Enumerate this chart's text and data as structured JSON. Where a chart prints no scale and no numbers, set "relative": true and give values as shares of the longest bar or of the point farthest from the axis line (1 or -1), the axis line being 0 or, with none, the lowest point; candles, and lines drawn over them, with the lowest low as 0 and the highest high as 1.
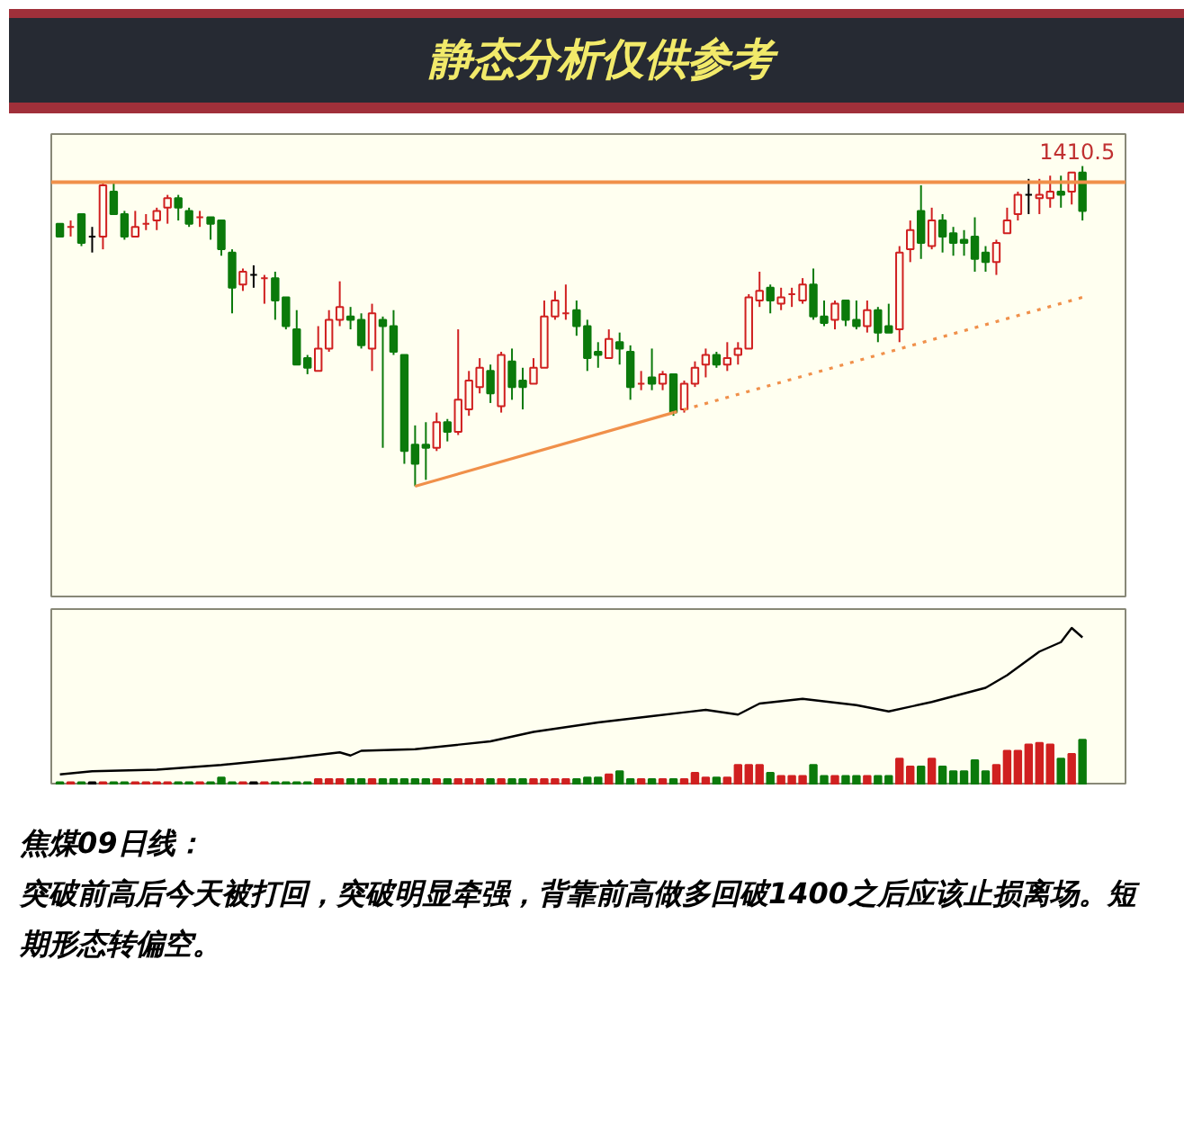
{
  "chart_data": [
    {
      "type": "candlestick",
      "title": "静态分析仅供参考",
      "relative": true,
      "categories": [
        null,
        null,
        null,
        null,
        null,
        null,
        null,
        null,
        null,
        null,
        null,
        null,
        null,
        null,
        null,
        null,
        null,
        null,
        null,
        null,
        null,
        null,
        null,
        null,
        null,
        null,
        null,
        null,
        null,
        null,
        null,
        null,
        null,
        null,
        null,
        null,
        null,
        null,
        null,
        null,
        null,
        null,
        null,
        null,
        null,
        null,
        null,
        null,
        null,
        null,
        null,
        null,
        null,
        null,
        null,
        null,
        null,
        null,
        null,
        null,
        null,
        null,
        null,
        null,
        null,
        null,
        null,
        null,
        null,
        null,
        null,
        null,
        null,
        null,
        null,
        null,
        null,
        null,
        null,
        null,
        null,
        null,
        null,
        null,
        null,
        null,
        null,
        null,
        null,
        null,
        null,
        null,
        null,
        null,
        null,
        null
      ],
      "ohlc": [
        [
          0.82,
          0.82,
          0.78,
          0.78
        ],
        [
          0.81,
          0.83,
          0.78,
          0.81
        ],
        [
          0.85,
          0.85,
          0.75,
          0.76
        ],
        [
          0.78,
          0.81,
          0.73,
          0.78
        ],
        [
          0.78,
          0.95,
          0.74,
          0.94
        ],
        [
          0.92,
          0.95,
          0.85,
          0.85
        ],
        [
          0.85,
          0.86,
          0.77,
          0.78
        ],
        [
          0.78,
          0.86,
          0.78,
          0.81
        ],
        [
          0.82,
          0.85,
          0.8,
          0.82
        ],
        [
          0.83,
          0.87,
          0.8,
          0.86
        ],
        [
          0.87,
          0.91,
          0.82,
          0.9
        ],
        [
          0.9,
          0.91,
          0.83,
          0.87
        ],
        [
          0.86,
          0.87,
          0.81,
          0.82
        ],
        [
          0.84,
          0.86,
          0.81,
          0.84
        ],
        [
          0.84,
          0.84,
          0.77,
          0.82
        ],
        [
          0.83,
          0.83,
          0.72,
          0.74
        ],
        [
          0.73,
          0.74,
          0.54,
          0.62
        ],
        [
          0.63,
          0.68,
          0.61,
          0.67
        ],
        [
          0.66,
          0.69,
          0.62,
          0.66
        ],
        [
          0.65,
          0.66,
          0.57,
          0.65
        ],
        [
          0.65,
          0.67,
          0.52,
          0.58
        ],
        [
          0.59,
          0.59,
          0.49,
          0.5
        ],
        [
          0.49,
          0.55,
          0.38,
          0.38
        ],
        [
          0.4,
          0.41,
          0.35,
          0.37
        ],
        [
          0.36,
          0.5,
          0.36,
          0.43
        ],
        [
          0.43,
          0.55,
          0.42,
          0.52
        ],
        [
          0.52,
          0.64,
          0.5,
          0.56
        ],
        [
          0.53,
          0.56,
          0.49,
          0.52
        ],
        [
          0.52,
          0.54,
          0.43,
          0.44
        ],
        [
          0.43,
          0.57,
          0.36,
          0.54
        ],
        [
          0.52,
          0.53,
          0.12,
          0.5
        ],
        [
          0.5,
          0.55,
          0.41,
          0.42
        ],
        [
          0.41,
          0.41,
          0.07,
          0.11
        ],
        [
          0.13,
          0.19,
          0,
          0.07
        ],
        [
          0.13,
          0.2,
          0.02,
          0.12
        ],
        [
          0.12,
          0.23,
          0.11,
          0.2
        ],
        [
          0.2,
          0.21,
          0.14,
          0.17
        ],
        [
          0.17,
          0.49,
          0.16,
          0.27
        ],
        [
          0.24,
          0.36,
          0.22,
          0.33
        ],
        [
          0.31,
          0.4,
          0.29,
          0.37
        ],
        [
          0.36,
          0.38,
          0.26,
          0.29
        ],
        [
          0.25,
          0.42,
          0.23,
          0.41
        ],
        [
          0.39,
          0.43,
          0.27,
          0.31
        ],
        [
          0.33,
          0.37,
          0.24,
          0.31
        ],
        [
          0.32,
          0.4,
          0.32,
          0.37
        ],
        [
          0.37,
          0.58,
          0.37,
          0.53
        ],
        [
          0.53,
          0.61,
          0.52,
          0.58
        ],
        [
          0.54,
          0.63,
          0.52,
          0.54
        ],
        [
          0.55,
          0.58,
          0.47,
          0.5
        ],
        [
          0.5,
          0.52,
          0.36,
          0.4
        ],
        [
          0.42,
          0.45,
          0.37,
          0.41
        ],
        [
          0.4,
          0.49,
          0.4,
          0.46
        ],
        [
          0.45,
          0.48,
          0.38,
          0.43
        ],
        [
          0.42,
          0.44,
          0.27,
          0.31
        ],
        [
          0.32,
          0.36,
          0.3,
          0.32
        ],
        [
          0.34,
          0.43,
          0.3,
          0.32
        ],
        [
          0.32,
          0.36,
          0.3,
          0.35
        ],
        [
          0.35,
          0.35,
          0.22,
          0.23
        ],
        [
          0.24,
          0.33,
          0.23,
          0.32
        ],
        [
          0.32,
          0.39,
          0.31,
          0.37
        ],
        [
          0.38,
          0.43,
          0.34,
          0.41
        ],
        [
          0.41,
          0.42,
          0.37,
          0.38
        ],
        [
          0.38,
          0.45,
          0.36,
          0.4
        ],
        [
          0.41,
          0.45,
          0.38,
          0.43
        ],
        [
          0.43,
          0.6,
          0.43,
          0.59
        ],
        [
          0.58,
          0.67,
          0.56,
          0.61
        ],
        [
          0.62,
          0.63,
          0.54,
          0.58
        ],
        [
          0.57,
          0.62,
          0.55,
          0.59
        ],
        [
          0.6,
          0.62,
          0.56,
          0.6
        ],
        [
          0.58,
          0.65,
          0.57,
          0.63
        ],
        [
          0.63,
          0.68,
          0.52,
          0.53
        ],
        [
          0.53,
          0.58,
          0.5,
          0.51
        ],
        [
          0.52,
          0.58,
          0.49,
          0.57
        ],
        [
          0.58,
          0.58,
          0.5,
          0.52
        ],
        [
          0.52,
          0.58,
          0.49,
          0.5
        ],
        [
          0.5,
          0.58,
          0.48,
          0.55
        ],
        [
          0.55,
          0.56,
          0.45,
          0.48
        ],
        [
          0.5,
          0.57,
          0.48,
          0.48
        ],
        [
          0.49,
          0.75,
          0.45,
          0.73
        ],
        [
          0.74,
          0.83,
          0.7,
          0.8
        ],
        [
          0.86,
          0.94,
          0.71,
          0.76
        ],
        [
          0.75,
          0.87,
          0.74,
          0.83
        ],
        [
          0.83,
          0.85,
          0.73,
          0.78
        ],
        [
          0.79,
          0.81,
          0.72,
          0.76
        ],
        [
          0.77,
          0.8,
          0.72,
          0.76
        ],
        [
          0.78,
          0.84,
          0.67,
          0.71
        ],
        [
          0.73,
          0.75,
          0.67,
          0.7
        ],
        [
          0.7,
          0.77,
          0.66,
          0.76
        ],
        [
          0.79,
          0.87,
          0.79,
          0.83
        ],
        [
          0.85,
          0.92,
          0.83,
          0.91
        ],
        [
          0.91,
          0.96,
          0.85,
          0.91
        ],
        [
          0.9,
          0.96,
          0.85,
          0.91
        ],
        [
          0.9,
          0.97,
          0.87,
          0.92
        ],
        [
          0.92,
          0.97,
          0.87,
          0.91
        ],
        [
          0.92,
          0.98,
          0.88,
          0.98
        ],
        [
          0.98,
          1,
          0.83,
          0.86
        ]
      ],
      "colors": [
        "#0b7a0b",
        "#d02020",
        "#0b7a0b",
        "#000000",
        "#d02020",
        "#0b7a0b",
        "#0b7a0b",
        "#d02020",
        "#d02020",
        "#d02020",
        "#d02020",
        "#0b7a0b",
        "#0b7a0b",
        "#d02020",
        "#0b7a0b",
        "#0b7a0b",
        "#0b7a0b",
        "#d02020",
        "#000000",
        "#d02020",
        "#0b7a0b",
        "#0b7a0b",
        "#0b7a0b",
        "#0b7a0b",
        "#d02020",
        "#d02020",
        "#d02020",
        "#0b7a0b",
        "#0b7a0b",
        "#d02020",
        "#0b7a0b",
        "#0b7a0b",
        "#0b7a0b",
        "#0b7a0b",
        "#0b7a0b",
        "#d02020",
        "#0b7a0b",
        "#d02020",
        "#d02020",
        "#d02020",
        "#0b7a0b",
        "#d02020",
        "#0b7a0b",
        "#0b7a0b",
        "#d02020",
        "#d02020",
        "#d02020",
        "#d02020",
        "#0b7a0b",
        "#0b7a0b",
        "#0b7a0b",
        "#d02020",
        "#0b7a0b",
        "#0b7a0b",
        "#d02020",
        "#0b7a0b",
        "#d02020",
        "#0b7a0b",
        "#d02020",
        "#d02020",
        "#d02020",
        "#0b7a0b",
        "#d02020",
        "#d02020",
        "#d02020",
        "#d02020",
        "#0b7a0b",
        "#d02020",
        "#d02020",
        "#d02020",
        "#0b7a0b",
        "#0b7a0b",
        "#d02020",
        "#0b7a0b",
        "#0b7a0b",
        "#d02020",
        "#0b7a0b",
        "#0b7a0b",
        "#d02020",
        "#d02020",
        "#0b7a0b",
        "#d02020",
        "#0b7a0b",
        "#0b7a0b",
        "#0b7a0b",
        "#0b7a0b",
        "#0b7a0b",
        "#d02020",
        "#d02020",
        "#d02020",
        "#000000",
        "#d02020",
        "#d02020",
        "#0b7a0b",
        "#d02020",
        "#0b7a0b"
      ],
      "annotations": [
        {
          "text": "1410.5",
          "y": 1
        }
      ],
      "ref_lines": [
        {
          "axis": "y",
          "value": 0.95,
          "color": "#f0904a"
        }
      ],
      "series": [
        {
          "type": "line",
          "values": [
            null,
            null,
            null,
            null,
            null,
            null,
            null,
            null,
            null,
            null,
            null,
            null,
            null,
            null,
            null,
            null,
            null,
            null,
            null,
            null,
            null,
            null,
            null,
            null,
            null,
            null,
            null,
            null,
            null,
            null,
            null,
            null,
            null,
            0,
            null,
            null,
            null,
            null,
            null,
            null,
            null,
            null,
            null,
            null,
            null,
            null,
            null,
            null,
            null,
            null,
            null,
            null,
            null,
            null,
            null,
            null,
            null,
            0.23,
            null,
            null,
            null,
            null,
            null,
            null,
            null,
            null,
            null,
            null,
            null,
            null,
            null,
            null,
            null,
            null,
            null,
            null,
            null,
            null,
            null,
            null,
            null,
            null,
            null,
            null,
            null,
            null,
            null,
            null,
            null,
            null,
            null,
            null,
            null,
            null,
            null,
            null
          ],
          "color": "#f0904a",
          "line_style": "solid"
        },
        {
          "type": "line",
          "values": [
            null,
            null,
            null,
            null,
            null,
            null,
            null,
            null,
            null,
            null,
            null,
            null,
            null,
            null,
            null,
            null,
            null,
            null,
            null,
            null,
            null,
            null,
            null,
            null,
            null,
            null,
            null,
            null,
            null,
            null,
            null,
            null,
            null,
            null,
            null,
            null,
            null,
            null,
            null,
            null,
            null,
            null,
            null,
            null,
            null,
            null,
            null,
            null,
            null,
            null,
            null,
            null,
            null,
            null,
            null,
            null,
            null,
            0.23,
            null,
            null,
            null,
            null,
            null,
            null,
            null,
            null,
            null,
            null,
            null,
            null,
            null,
            null,
            null,
            null,
            null,
            null,
            null,
            null,
            null,
            null,
            null,
            null,
            null,
            null,
            null,
            null,
            null,
            null,
            null,
            null,
            null,
            null,
            null,
            null,
            null,
            0.59
          ],
          "color": "#f0904a",
          "line_style": "dotted"
        }
      ]
    },
    {
      "type": "bar",
      "relative": true,
      "categories": [
        null,
        null,
        null,
        null,
        null,
        null,
        null,
        null,
        null,
        null,
        null,
        null,
        null,
        null,
        null,
        null,
        null,
        null,
        null,
        null,
        null,
        null,
        null,
        null,
        null,
        null,
        null,
        null,
        null,
        null,
        null,
        null,
        null,
        null,
        null,
        null,
        null,
        null,
        null,
        null,
        null,
        null,
        null,
        null,
        null,
        null,
        null,
        null,
        null,
        null,
        null,
        null,
        null,
        null,
        null,
        null,
        null,
        null,
        null,
        null,
        null,
        null,
        null,
        null,
        null,
        null,
        null,
        null,
        null,
        null,
        null,
        null,
        null,
        null,
        null,
        null,
        null,
        null,
        null,
        null,
        null,
        null,
        null,
        null,
        null,
        null,
        null,
        null,
        null,
        null,
        null,
        null,
        null,
        null,
        null,
        null
      ],
      "series": [
        {
          "type": "bar",
          "values": [
            0.02,
            0.02,
            0.02,
            0.02,
            0.02,
            0.02,
            0.02,
            0.02,
            0.02,
            0.02,
            0.02,
            0.02,
            0.02,
            0.02,
            0.02,
            0.05,
            0.02,
            0.02,
            0.02,
            0.02,
            0.02,
            0.02,
            0.02,
            0.02,
            0.04,
            0.04,
            0.04,
            0.04,
            0.04,
            0.04,
            0.04,
            0.04,
            0.04,
            0.04,
            0.04,
            0.04,
            0.04,
            0.04,
            0.04,
            0.04,
            0.04,
            0.04,
            0.04,
            0.04,
            0.04,
            0.04,
            0.04,
            0.04,
            0.04,
            0.05,
            0.05,
            0.07,
            0.09,
            0.04,
            0.04,
            0.04,
            0.04,
            0.04,
            0.04,
            0.08,
            0.05,
            0.05,
            0.05,
            0.13,
            0.13,
            0.13,
            0.08,
            0.06,
            0.06,
            0.06,
            0.13,
            0.06,
            0.06,
            0.06,
            0.06,
            0.06,
            0.06,
            0.06,
            0.17,
            0.12,
            0.12,
            0.17,
            0.12,
            0.09,
            0.09,
            0.16,
            0.09,
            0.13,
            0.22,
            0.22,
            0.26,
            0.27,
            0.26,
            0.17,
            0.2,
            0.29
          ],
          "colors": [
            "#0b7a0b",
            "#d02020",
            "#0b7a0b",
            "#000000",
            "#d02020",
            "#0b7a0b",
            "#0b7a0b",
            "#d02020",
            "#d02020",
            "#d02020",
            "#d02020",
            "#0b7a0b",
            "#0b7a0b",
            "#d02020",
            "#0b7a0b",
            "#0b7a0b",
            "#0b7a0b",
            "#d02020",
            "#000000",
            "#d02020",
            "#0b7a0b",
            "#0b7a0b",
            "#0b7a0b",
            "#0b7a0b",
            "#d02020",
            "#d02020",
            "#d02020",
            "#0b7a0b",
            "#0b7a0b",
            "#d02020",
            "#0b7a0b",
            "#0b7a0b",
            "#0b7a0b",
            "#0b7a0b",
            "#0b7a0b",
            "#d02020",
            "#0b7a0b",
            "#d02020",
            "#d02020",
            "#d02020",
            "#0b7a0b",
            "#d02020",
            "#0b7a0b",
            "#0b7a0b",
            "#d02020",
            "#d02020",
            "#d02020",
            "#d02020",
            "#0b7a0b",
            "#0b7a0b",
            "#0b7a0b",
            "#d02020",
            "#0b7a0b",
            "#0b7a0b",
            "#d02020",
            "#0b7a0b",
            "#d02020",
            "#0b7a0b",
            "#d02020",
            "#d02020",
            "#d02020",
            "#0b7a0b",
            "#d02020",
            "#d02020",
            "#d02020",
            "#d02020",
            "#0b7a0b",
            "#d02020",
            "#d02020",
            "#d02020",
            "#0b7a0b",
            "#0b7a0b",
            "#d02020",
            "#0b7a0b",
            "#0b7a0b",
            "#d02020",
            "#0b7a0b",
            "#0b7a0b",
            "#d02020",
            "#d02020",
            "#0b7a0b",
            "#d02020",
            "#0b7a0b",
            "#0b7a0b",
            "#0b7a0b",
            "#0b7a0b",
            "#0b7a0b",
            "#d02020",
            "#d02020",
            "#d02020",
            "#d02020",
            "#d02020",
            "#d02020",
            "#0b7a0b",
            "#d02020",
            "#0b7a0b"
          ]
        },
        {
          "type": "line",
          "color": "#000000",
          "values": [
            0.07,
            null,
            null,
            0.09,
            null,
            null,
            null,
            null,
            null,
            0.1,
            null,
            null,
            null,
            null,
            null,
            0.13,
            null,
            null,
            null,
            null,
            null,
            0.17,
            null,
            null,
            null,
            null,
            0.21,
            0.19,
            0.22,
            null,
            null,
            null,
            null,
            0.23,
            null,
            null,
            null,
            null,
            null,
            null,
            0.28,
            null,
            null,
            null,
            0.34,
            null,
            null,
            null,
            null,
            null,
            0.4,
            null,
            null,
            null,
            null,
            0.44,
            null,
            null,
            null,
            null,
            0.48,
            null,
            null,
            0.45,
            null,
            0.52,
            null,
            null,
            null,
            0.55,
            null,
            null,
            null,
            null,
            0.51,
            null,
            null,
            0.47,
            null,
            null,
            null,
            0.53,
            null,
            null,
            null,
            null,
            0.62,
            null,
            0.7,
            null,
            null,
            0.85,
            null,
            0.91,
            1,
            0.94
          ]
        }
      ],
      "annotations": [
        "焦煤09日线：",
        "突破前高后今天被打回，突破明显牵强，背靠前高做多回破1400之后应该止损离场。短期形态转偏空。"
      ]
    }
  ]
}
